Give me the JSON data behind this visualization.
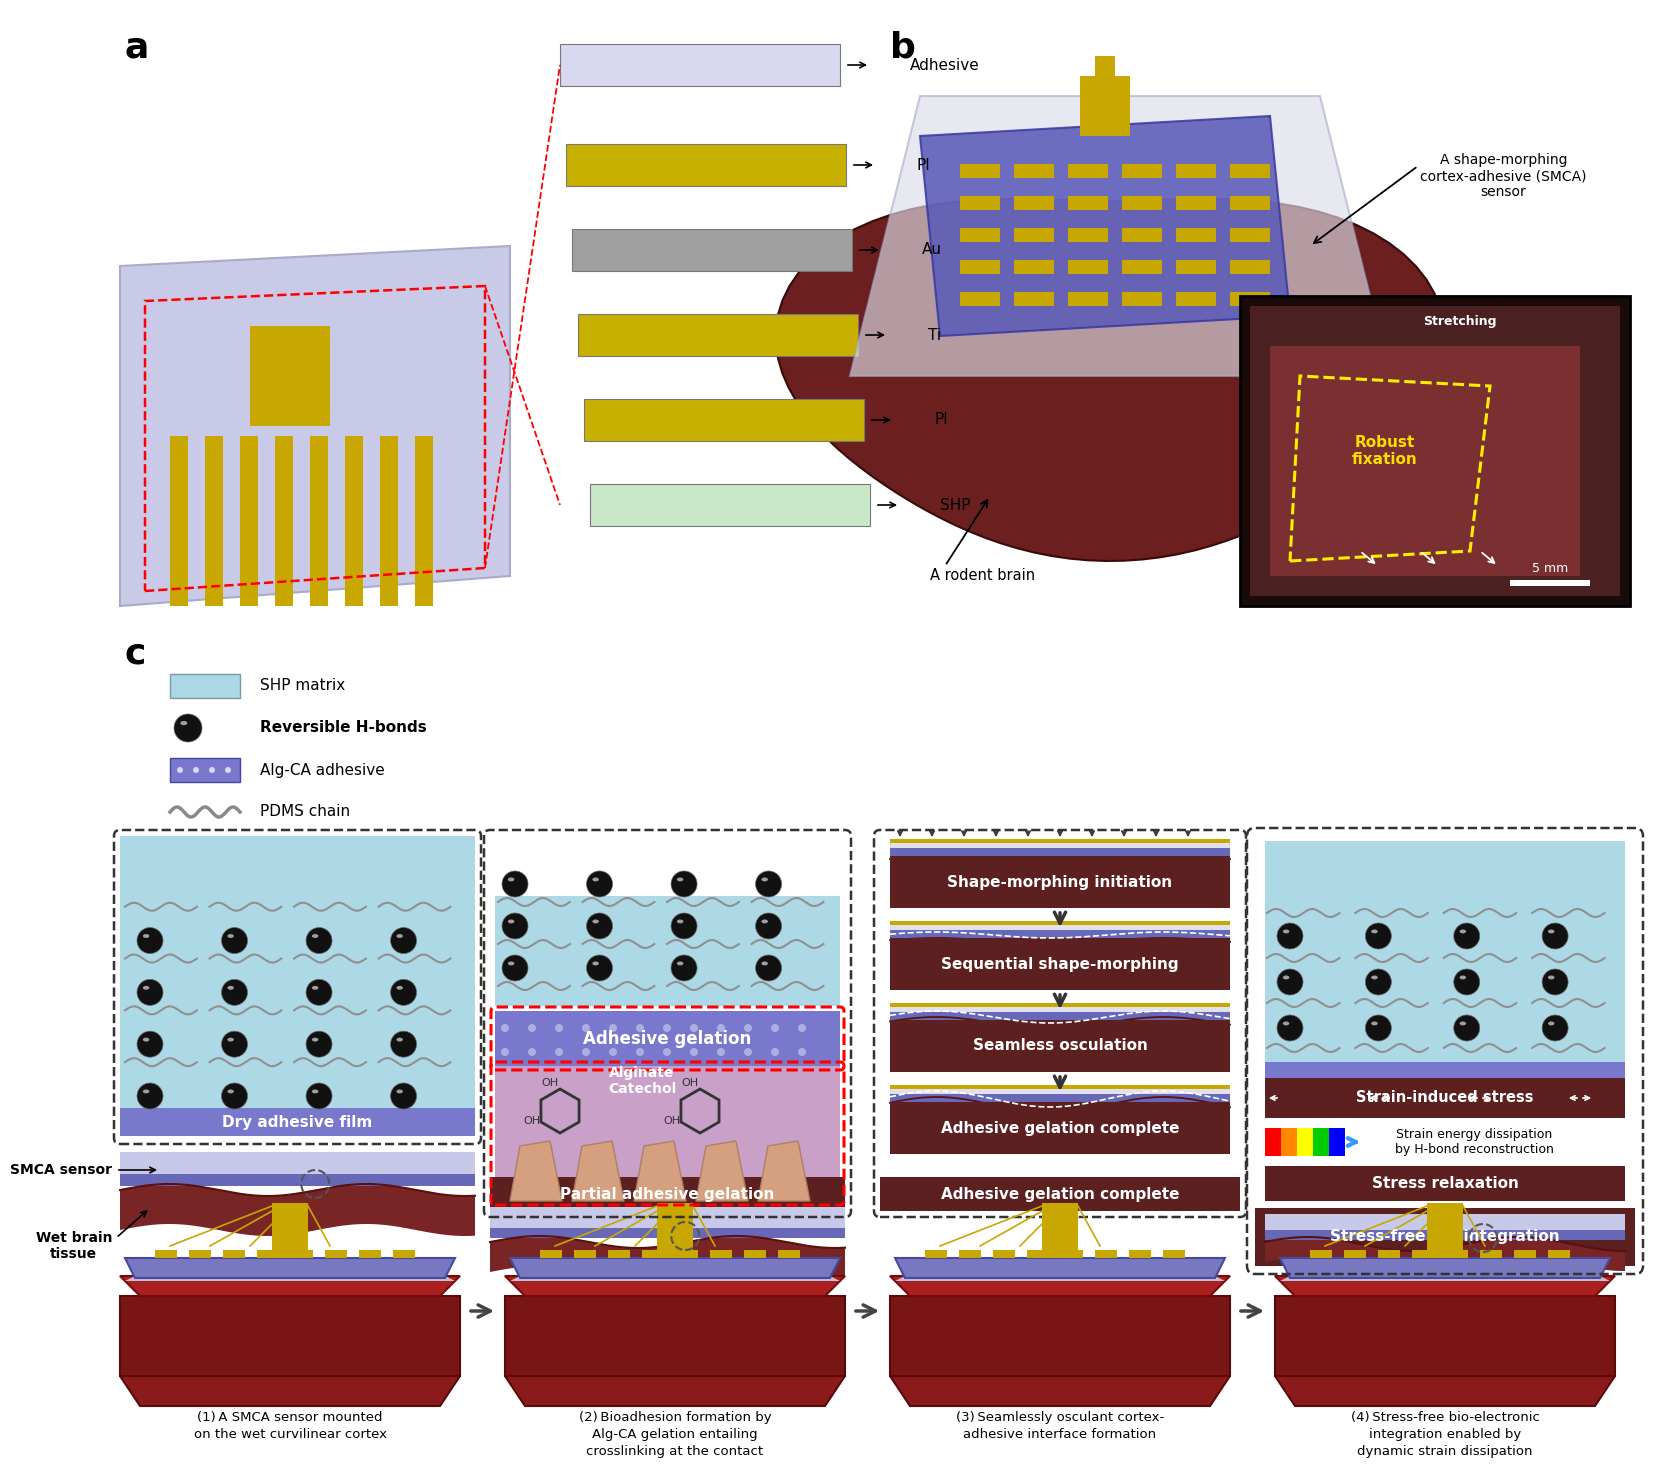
{
  "bg_color": "#ffffff",
  "panel_a_label": "a",
  "panel_b_label": "b",
  "panel_c_label": "c",
  "layer_labels": [
    "Adhesive",
    "PI",
    "Au",
    "Ti",
    "PI",
    "SHP"
  ],
  "layer_colors": [
    "#d8d8f0",
    "#c8b000",
    "#a0a0a0",
    "#c8b000",
    "#c8b000",
    "#c8e8c8"
  ],
  "legend_items": [
    {
      "label": "SHP matrix",
      "color": "#add8e6"
    },
    {
      "label": "Reversible H-bonds",
      "color": "#1a1a1a"
    },
    {
      "label": "Alg-CA adhesive",
      "color": "#7878cc"
    },
    {
      "label": "PDMS chain",
      "color": "#888888"
    }
  ],
  "process_steps": [
    "Shape-morphing initiation",
    "Sequential shape-morphing",
    "Seamless osculation",
    "Adhesive gelation complete"
  ],
  "step_bottom_labels": [
    "Partial adhesive gelation",
    "Adhesive gelation complete",
    "Stress-free bio-integration"
  ],
  "bottom_captions": [
    "(1) A SMCA sensor mounted\non the wet curvilinear cortex",
    "(2) Bioadhesion formation by\nAlg-CA gelation entailing\ncrosslinking at the contact",
    "(3) Seamlessly osculant cortex-\nadhesive interface formation",
    "(4) Stress-free bio-electronic\nintegration enabled by\ndynamic strain dissipation"
  ],
  "right_panel_labels": [
    "Strain-induced stress",
    "Strain energy dissipation\nby H-bond reconstruction",
    "Stress relaxation"
  ],
  "smca_label": "SMCA sensor",
  "wet_brain_label": "Wet brain\ntissue",
  "rodent_brain_label": "A rodent brain",
  "smca_sensor_label": "A shape-morphing\ncortex-adhesive (SMCA)\nsensor",
  "stretching_label": "Stretching",
  "robust_label": "Robust\nfixation",
  "scale_label": "5 mm",
  "dry_adhesive_label": "Dry adhesive film",
  "adhesive_gelation_label": "Adhesive gelation",
  "alginate_label": "Alginate\nCatechol"
}
